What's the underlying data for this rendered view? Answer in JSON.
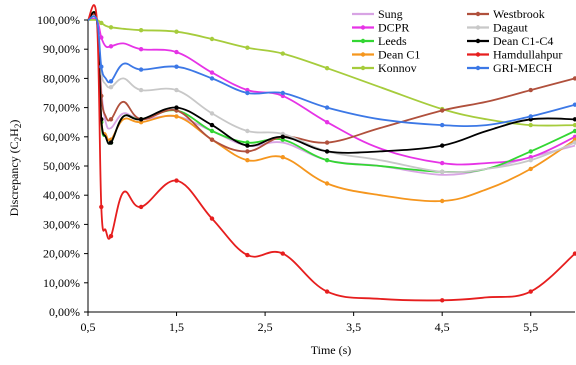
{
  "chart_data": {
    "type": "line",
    "title": "",
    "xlabel": "Time (s)",
    "ylabel": "Discrepancy (C2H2)",
    "ylabel_main": "Discrepancy (C",
    "ylabel_sub": "2",
    "ylabel_mid": "H",
    "ylabel_sub2": "2",
    "ylabel_end": ")",
    "xlim": [
      0.5,
      6.0
    ],
    "ylim": [
      0,
      100
    ],
    "x_ticks": [
      0.5,
      1.5,
      2.5,
      3.5,
      4.5,
      5.5
    ],
    "x_tick_labels": [
      "0,5",
      "1,5",
      "2,5",
      "3,5",
      "4,5",
      "5,5"
    ],
    "y_ticks": [
      0,
      10,
      20,
      30,
      40,
      50,
      60,
      70,
      80,
      90,
      100
    ],
    "y_tick_labels": [
      "0,00%",
      "10,00%",
      "20,00%",
      "30,00%",
      "40,00%",
      "50,00%",
      "60,00%",
      "70,00%",
      "80,00%",
      "90,00%",
      "100,00%"
    ],
    "grid": false,
    "legend_position": "top-right",
    "series": [
      {
        "name": "Sung",
        "color": "#d8a4e4",
        "marker": false,
        "x": [
          0.5,
          0.6,
          0.65,
          0.7,
          0.76,
          0.9,
          1.1,
          1.5,
          1.9,
          2.3,
          2.7,
          3.2,
          3.8,
          4.5,
          5.0,
          5.5,
          6.0
        ],
        "y": [
          100,
          100,
          76,
          65,
          63,
          68,
          66,
          67,
          62,
          57,
          58,
          52,
          50,
          47,
          49,
          53,
          57
        ]
      },
      {
        "name": "DCPR",
        "color": "#e633e6",
        "marker": true,
        "x": [
          0.5,
          0.6,
          0.65,
          0.7,
          0.76,
          0.9,
          1.1,
          1.5,
          1.9,
          2.3,
          2.7,
          3.2,
          3.8,
          4.5,
          5.0,
          5.5,
          6.0
        ],
        "y": [
          100,
          100,
          94,
          91,
          91,
          92,
          90,
          89,
          82,
          76,
          74,
          65,
          56,
          51,
          51,
          53,
          60
        ]
      },
      {
        "name": "Leeds",
        "color": "#33d633",
        "marker": true,
        "x": [
          0.5,
          0.6,
          0.65,
          0.7,
          0.76,
          0.9,
          1.1,
          1.5,
          1.9,
          2.3,
          2.7,
          3.2,
          3.8,
          4.5,
          5.0,
          5.5,
          6.0
        ],
        "y": [
          100,
          100,
          65,
          60,
          58,
          67,
          66,
          69,
          62,
          58,
          59,
          52,
          50,
          48,
          49,
          55,
          62
        ]
      },
      {
        "name": "Dean C1",
        "color": "#f5961e",
        "marker": true,
        "x": [
          0.5,
          0.6,
          0.65,
          0.7,
          0.76,
          0.9,
          1.1,
          1.5,
          1.9,
          2.3,
          2.7,
          3.2,
          3.8,
          4.5,
          5.0,
          5.5,
          6.0
        ],
        "y": [
          100,
          100,
          66,
          61,
          59,
          66,
          65,
          67,
          59,
          52,
          53,
          44,
          40,
          38,
          42,
          49,
          59
        ]
      },
      {
        "name": "Konnov",
        "color": "#a6cc3c",
        "marker": true,
        "x": [
          0.5,
          0.6,
          0.65,
          0.7,
          0.76,
          0.9,
          1.1,
          1.5,
          1.9,
          2.3,
          2.7,
          3.2,
          3.8,
          4.5,
          5.0,
          5.5,
          6.0
        ],
        "y": [
          100,
          100,
          99,
          98,
          97.5,
          97,
          96.5,
          96,
          93.5,
          90.5,
          88.5,
          83.5,
          77,
          69.5,
          66,
          64,
          64
        ]
      },
      {
        "name": "Westbrook",
        "color": "#b0503c",
        "marker": true,
        "x": [
          0.5,
          0.6,
          0.65,
          0.7,
          0.76,
          0.9,
          1.1,
          1.5,
          1.9,
          2.3,
          2.7,
          3.2,
          3.8,
          4.5,
          5.0,
          5.5,
          6.0
        ],
        "y": [
          100,
          100,
          74,
          67,
          66,
          72,
          66,
          69,
          59,
          55,
          60,
          58,
          63,
          69,
          72,
          76,
          80
        ]
      },
      {
        "name": "Dagaut",
        "color": "#c8c8c8",
        "marker": true,
        "x": [
          0.5,
          0.6,
          0.65,
          0.7,
          0.76,
          0.9,
          1.1,
          1.5,
          1.9,
          2.3,
          2.7,
          3.2,
          3.8,
          4.5,
          5.0,
          5.5,
          6.0
        ],
        "y": [
          100,
          100,
          82,
          78,
          77,
          80,
          76,
          76,
          68,
          62,
          61,
          55,
          52,
          48,
          49,
          52,
          58
        ]
      },
      {
        "name": "Dean C1-C4",
        "color": "#000000",
        "marker": true,
        "x": [
          0.5,
          0.6,
          0.65,
          0.7,
          0.76,
          0.9,
          1.1,
          1.5,
          1.9,
          2.3,
          2.7,
          3.2,
          3.8,
          4.5,
          5.0,
          5.5,
          6.0
        ],
        "y": [
          100,
          100,
          66,
          60,
          58,
          67,
          66,
          70,
          64,
          57,
          60,
          55,
          55,
          57,
          62,
          66,
          66
        ]
      },
      {
        "name": "Hamdullahpur",
        "color": "#e61e1e",
        "marker": true,
        "x": [
          0.5,
          0.6,
          0.65,
          0.7,
          0.76,
          0.9,
          1.1,
          1.5,
          1.9,
          2.3,
          2.7,
          3.2,
          3.8,
          4.5,
          5.0,
          5.5,
          6.0
        ],
        "y": [
          100,
          100,
          36,
          28,
          26,
          41,
          36,
          45,
          32,
          19.5,
          20,
          7,
          4.5,
          4,
          5,
          7,
          20
        ]
      },
      {
        "name": "GRI-MECH",
        "color": "#3c78e6",
        "marker": true,
        "x": [
          0.5,
          0.6,
          0.65,
          0.7,
          0.76,
          0.9,
          1.1,
          1.5,
          1.9,
          2.3,
          2.7,
          3.2,
          3.8,
          4.5,
          5.0,
          5.5,
          6.0
        ],
        "y": [
          100,
          100,
          84,
          80,
          79,
          85,
          83,
          84,
          80,
          75,
          75,
          70,
          66,
          64,
          64,
          67,
          71
        ]
      }
    ]
  }
}
